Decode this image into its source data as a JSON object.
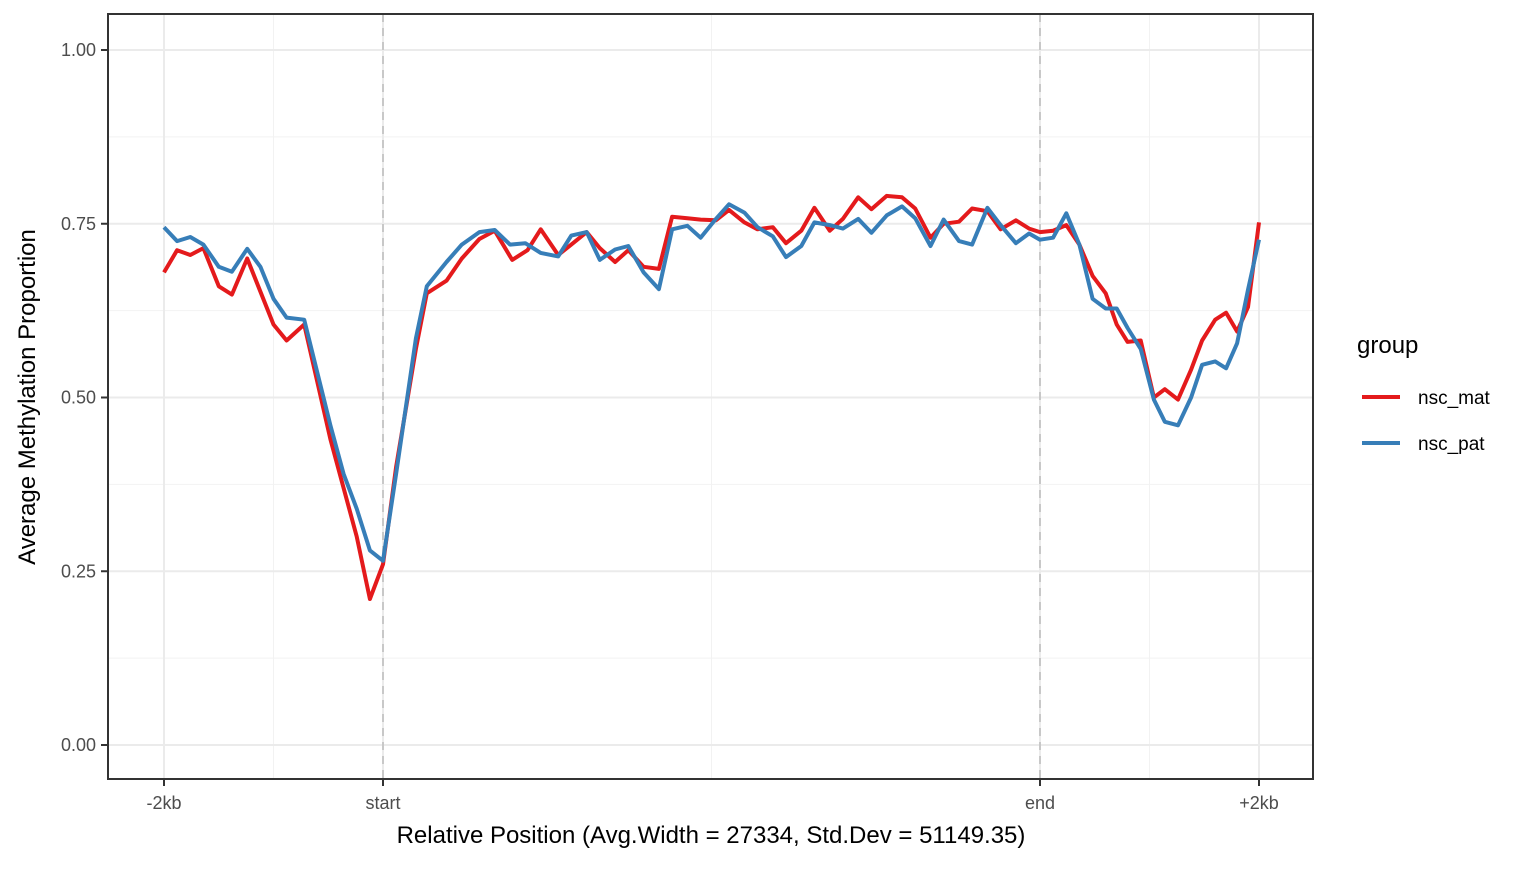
{
  "chart_data": {
    "type": "line",
    "xlabel": "Relative Position (Avg.Width = 27334, Std.Dev = 51149.35)",
    "ylabel": "Average Methylation Proportion",
    "xlim": [
      -0.12,
      5.2
    ],
    "ylim": [
      -0.05,
      1.05
    ],
    "x_ticks": [
      {
        "value": 0,
        "label": "-2kb"
      },
      {
        "value": 1,
        "label": "start"
      },
      {
        "value": 4,
        "label": "end"
      },
      {
        "value": 5,
        "label": "+2kb"
      }
    ],
    "x_minor_gridlines": [
      0.5,
      2.5,
      4.5
    ],
    "y_ticks": [
      {
        "value": 0.0,
        "label": "0.00"
      },
      {
        "value": 0.25,
        "label": "0.25"
      },
      {
        "value": 0.5,
        "label": "0.50"
      },
      {
        "value": 0.75,
        "label": "0.75"
      },
      {
        "value": 1.0,
        "label": "1.00"
      }
    ],
    "y_minor_gridlines": [
      0.125,
      0.375,
      0.625,
      0.875
    ],
    "vlines": [
      {
        "x": 1,
        "style": "dashed"
      },
      {
        "x": 4,
        "style": "dashed"
      }
    ],
    "grid": true,
    "legend": {
      "title": "group",
      "position": "right"
    },
    "series": [
      {
        "name": "nsc_mat",
        "color": "#E41A1C",
        "x": [
          0.0,
          0.06,
          0.12,
          0.18,
          0.25,
          0.31,
          0.38,
          0.5,
          0.56,
          0.64,
          0.76,
          0.88,
          0.94,
          1.0,
          1.06,
          1.15,
          1.2,
          1.29,
          1.36,
          1.44,
          1.51,
          1.59,
          1.66,
          1.72,
          1.8,
          1.86,
          1.93,
          1.99,
          2.06,
          2.12,
          2.19,
          2.26,
          2.32,
          2.39,
          2.45,
          2.52,
          2.58,
          2.65,
          2.71,
          2.78,
          2.84,
          2.91,
          2.97,
          3.04,
          3.1,
          3.17,
          3.23,
          3.3,
          3.37,
          3.43,
          3.5,
          3.56,
          3.63,
          3.69,
          3.76,
          3.82,
          3.89,
          3.95,
          4.0,
          4.06,
          4.12,
          4.18,
          4.24,
          4.3,
          4.35,
          4.4,
          4.46,
          4.52,
          4.57,
          4.63,
          4.69,
          4.74,
          4.8,
          4.85,
          4.9,
          4.95,
          5.0
        ],
        "y": [
          0.68,
          0.712,
          0.705,
          0.715,
          0.66,
          0.648,
          0.7,
          0.605,
          0.582,
          0.605,
          0.44,
          0.3,
          0.21,
          0.26,
          0.4,
          0.57,
          0.65,
          0.668,
          0.7,
          0.728,
          0.74,
          0.698,
          0.712,
          0.742,
          0.705,
          0.72,
          0.738,
          0.715,
          0.695,
          0.712,
          0.688,
          0.685,
          0.76,
          0.758,
          0.756,
          0.755,
          0.77,
          0.752,
          0.742,
          0.745,
          0.722,
          0.74,
          0.773,
          0.74,
          0.757,
          0.788,
          0.771,
          0.79,
          0.788,
          0.772,
          0.73,
          0.75,
          0.753,
          0.772,
          0.768,
          0.742,
          0.755,
          0.743,
          0.738,
          0.74,
          0.748,
          0.72,
          0.675,
          0.65,
          0.605,
          0.58,
          0.582,
          0.5,
          0.512,
          0.497,
          0.54,
          0.582,
          0.612,
          0.622,
          0.595,
          0.63,
          0.752
        ]
      },
      {
        "name": "nsc_pat",
        "color": "#377EB8",
        "x": [
          0.0,
          0.06,
          0.12,
          0.18,
          0.25,
          0.31,
          0.38,
          0.44,
          0.5,
          0.56,
          0.64,
          0.76,
          0.82,
          0.88,
          0.94,
          1.0,
          1.06,
          1.15,
          1.2,
          1.29,
          1.36,
          1.44,
          1.51,
          1.58,
          1.65,
          1.72,
          1.8,
          1.86,
          1.93,
          1.99,
          2.06,
          2.12,
          2.19,
          2.26,
          2.32,
          2.39,
          2.45,
          2.52,
          2.58,
          2.65,
          2.71,
          2.78,
          2.84,
          2.91,
          2.97,
          3.04,
          3.1,
          3.17,
          3.23,
          3.3,
          3.37,
          3.43,
          3.5,
          3.56,
          3.63,
          3.69,
          3.76,
          3.82,
          3.89,
          3.95,
          4.0,
          4.06,
          4.12,
          4.18,
          4.24,
          4.3,
          4.35,
          4.4,
          4.46,
          4.52,
          4.57,
          4.63,
          4.69,
          4.74,
          4.8,
          4.85,
          4.9,
          4.95,
          5.0
        ],
        "y": [
          0.745,
          0.725,
          0.731,
          0.72,
          0.688,
          0.681,
          0.714,
          0.688,
          0.642,
          0.615,
          0.612,
          0.46,
          0.39,
          0.34,
          0.28,
          0.265,
          0.39,
          0.585,
          0.66,
          0.695,
          0.72,
          0.738,
          0.741,
          0.72,
          0.722,
          0.708,
          0.703,
          0.733,
          0.738,
          0.698,
          0.713,
          0.718,
          0.68,
          0.656,
          0.742,
          0.747,
          0.73,
          0.757,
          0.778,
          0.766,
          0.745,
          0.732,
          0.702,
          0.718,
          0.752,
          0.748,
          0.743,
          0.757,
          0.737,
          0.762,
          0.775,
          0.758,
          0.718,
          0.756,
          0.725,
          0.72,
          0.773,
          0.748,
          0.722,
          0.736,
          0.727,
          0.73,
          0.765,
          0.72,
          0.642,
          0.628,
          0.628,
          0.6,
          0.57,
          0.497,
          0.465,
          0.46,
          0.5,
          0.547,
          0.552,
          0.542,
          0.578,
          0.655,
          0.727
        ]
      }
    ]
  }
}
